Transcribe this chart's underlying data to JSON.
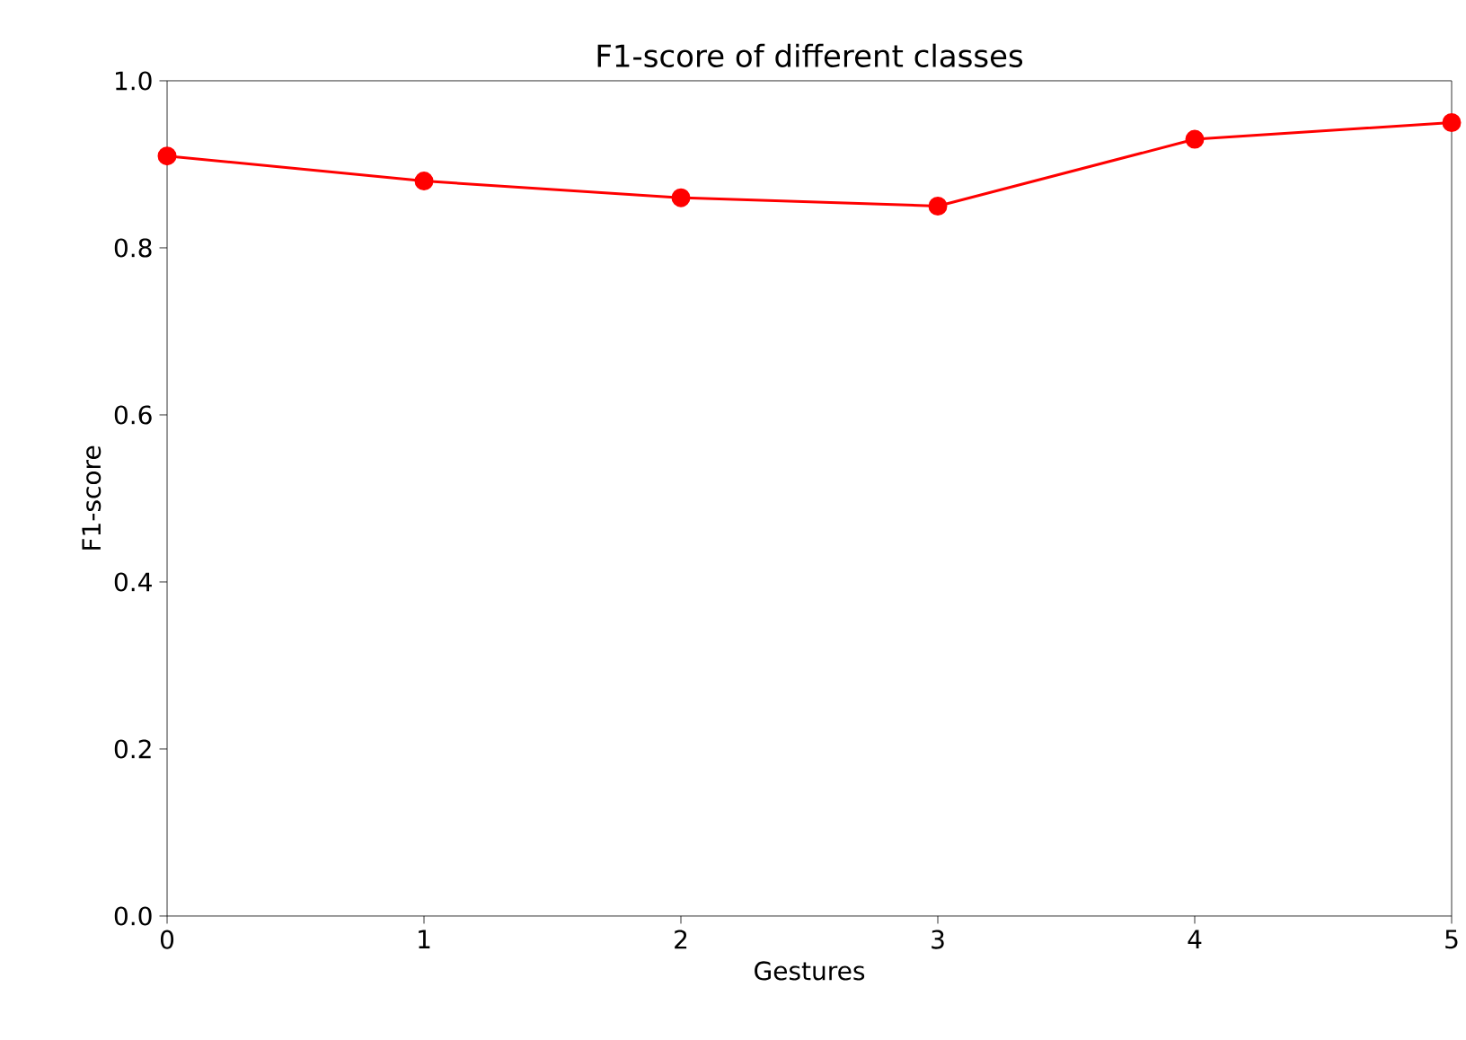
{
  "chart_data": {
    "type": "line",
    "title": "F1-score of different classes",
    "xlabel": "Gestures",
    "ylabel": "F1-score",
    "x": [
      0,
      1,
      2,
      3,
      4,
      5
    ],
    "series": [
      {
        "color": "#ff0000",
        "values": [
          0.91,
          0.88,
          0.86,
          0.85,
          0.93,
          0.95
        ]
      }
    ],
    "xlim": [
      0,
      5
    ],
    "ylim": [
      0,
      1.0
    ],
    "xticks": [
      0,
      1,
      2,
      3,
      4,
      5
    ],
    "yticks": [
      {
        "value": 0,
        "label": "0.0"
      },
      {
        "value": 0.2,
        "label": "0.2"
      },
      {
        "value": 0.4,
        "label": "0.4"
      },
      {
        "value": 0.6,
        "label": "0.6"
      },
      {
        "value": 0.8,
        "label": "0.8"
      },
      {
        "value": 1.0,
        "label": "1.0"
      }
    ],
    "grid": false,
    "marker": "circle",
    "line_style": "solid"
  }
}
